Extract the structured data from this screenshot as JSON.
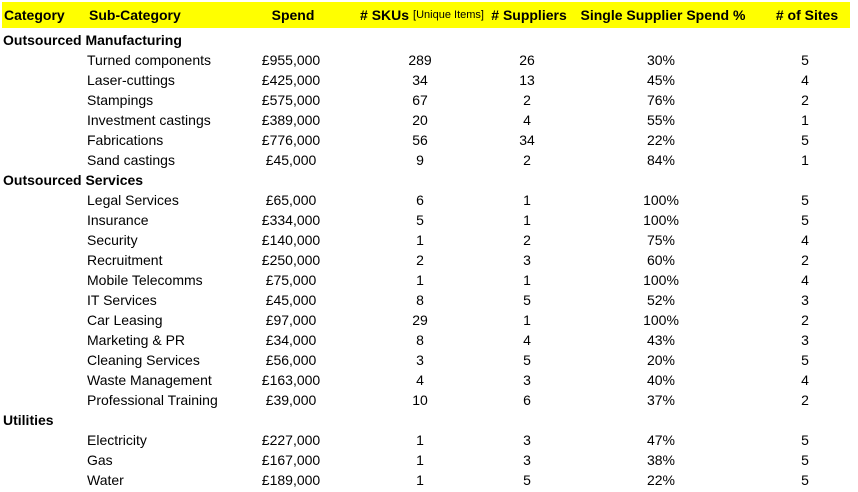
{
  "colors": {
    "header_background": "#ffff00",
    "text": "#000000",
    "page_background": "#ffffff"
  },
  "table": {
    "columns": [
      {
        "label": "Category"
      },
      {
        "label": "Sub-Category"
      },
      {
        "label": "Spend"
      },
      {
        "label": "# SKUs",
        "sublabel": "[Unique Items]"
      },
      {
        "label": "# Suppliers"
      },
      {
        "label": "Single Supplier Spend %"
      },
      {
        "label": "# of Sites"
      }
    ],
    "groups": [
      {
        "category": "Outsourced Manufacturing",
        "rows": [
          {
            "sub_category": "Turned components",
            "spend": "£955,000",
            "skus": "289",
            "suppliers": "26",
            "single_supplier_spend_pct": "30%",
            "sites": "5"
          },
          {
            "sub_category": "Laser-cuttings",
            "spend": "£425,000",
            "skus": "34",
            "suppliers": "13",
            "single_supplier_spend_pct": "45%",
            "sites": "4"
          },
          {
            "sub_category": "Stampings",
            "spend": "£575,000",
            "skus": "67",
            "suppliers": "2",
            "single_supplier_spend_pct": "76%",
            "sites": "2"
          },
          {
            "sub_category": "Investment castings",
            "spend": "£389,000",
            "skus": "20",
            "suppliers": "4",
            "single_supplier_spend_pct": "55%",
            "sites": "1"
          },
          {
            "sub_category": "Fabrications",
            "spend": "£776,000",
            "skus": "56",
            "suppliers": "34",
            "single_supplier_spend_pct": "22%",
            "sites": "5"
          },
          {
            "sub_category": "Sand castings",
            "spend": "£45,000",
            "skus": "9",
            "suppliers": "2",
            "single_supplier_spend_pct": "84%",
            "sites": "1"
          }
        ]
      },
      {
        "category": "Outsourced Services",
        "rows": [
          {
            "sub_category": "Legal Services",
            "spend": "£65,000",
            "skus": "6",
            "suppliers": "1",
            "single_supplier_spend_pct": "100%",
            "sites": "5"
          },
          {
            "sub_category": "Insurance",
            "spend": "£334,000",
            "skus": "5",
            "suppliers": "1",
            "single_supplier_spend_pct": "100%",
            "sites": "5"
          },
          {
            "sub_category": "Security",
            "spend": "£140,000",
            "skus": "1",
            "suppliers": "2",
            "single_supplier_spend_pct": "75%",
            "sites": "4"
          },
          {
            "sub_category": "Recruitment",
            "spend": "£250,000",
            "skus": "2",
            "suppliers": "3",
            "single_supplier_spend_pct": "60%",
            "sites": "2"
          },
          {
            "sub_category": "Mobile Telecomms",
            "spend": "£75,000",
            "skus": "1",
            "suppliers": "1",
            "single_supplier_spend_pct": "100%",
            "sites": "4"
          },
          {
            "sub_category": "IT Services",
            "spend": "£45,000",
            "skus": "8",
            "suppliers": "5",
            "single_supplier_spend_pct": "52%",
            "sites": "3"
          },
          {
            "sub_category": "Car Leasing",
            "spend": "£97,000",
            "skus": "29",
            "suppliers": "1",
            "single_supplier_spend_pct": "100%",
            "sites": "2"
          },
          {
            "sub_category": "Marketing & PR",
            "spend": "£34,000",
            "skus": "8",
            "suppliers": "4",
            "single_supplier_spend_pct": "43%",
            "sites": "3"
          },
          {
            "sub_category": "Cleaning Services",
            "spend": "£56,000",
            "skus": "3",
            "suppliers": "5",
            "single_supplier_spend_pct": "20%",
            "sites": "5"
          },
          {
            "sub_category": "Waste Management",
            "spend": "£163,000",
            "skus": "4",
            "suppliers": "3",
            "single_supplier_spend_pct": "40%",
            "sites": "4"
          },
          {
            "sub_category": "Professional Training",
            "spend": "£39,000",
            "skus": "10",
            "suppliers": "6",
            "single_supplier_spend_pct": "37%",
            "sites": "2"
          }
        ]
      },
      {
        "category": "Utilities",
        "rows": [
          {
            "sub_category": "Electricity",
            "spend": "£227,000",
            "skus": "1",
            "suppliers": "3",
            "single_supplier_spend_pct": "47%",
            "sites": "5"
          },
          {
            "sub_category": "Gas",
            "spend": "£167,000",
            "skus": "1",
            "suppliers": "3",
            "single_supplier_spend_pct": "38%",
            "sites": "5"
          },
          {
            "sub_category": "Water",
            "spend": "£189,000",
            "skus": "1",
            "suppliers": "5",
            "single_supplier_spend_pct": "22%",
            "sites": "5"
          }
        ]
      }
    ]
  }
}
